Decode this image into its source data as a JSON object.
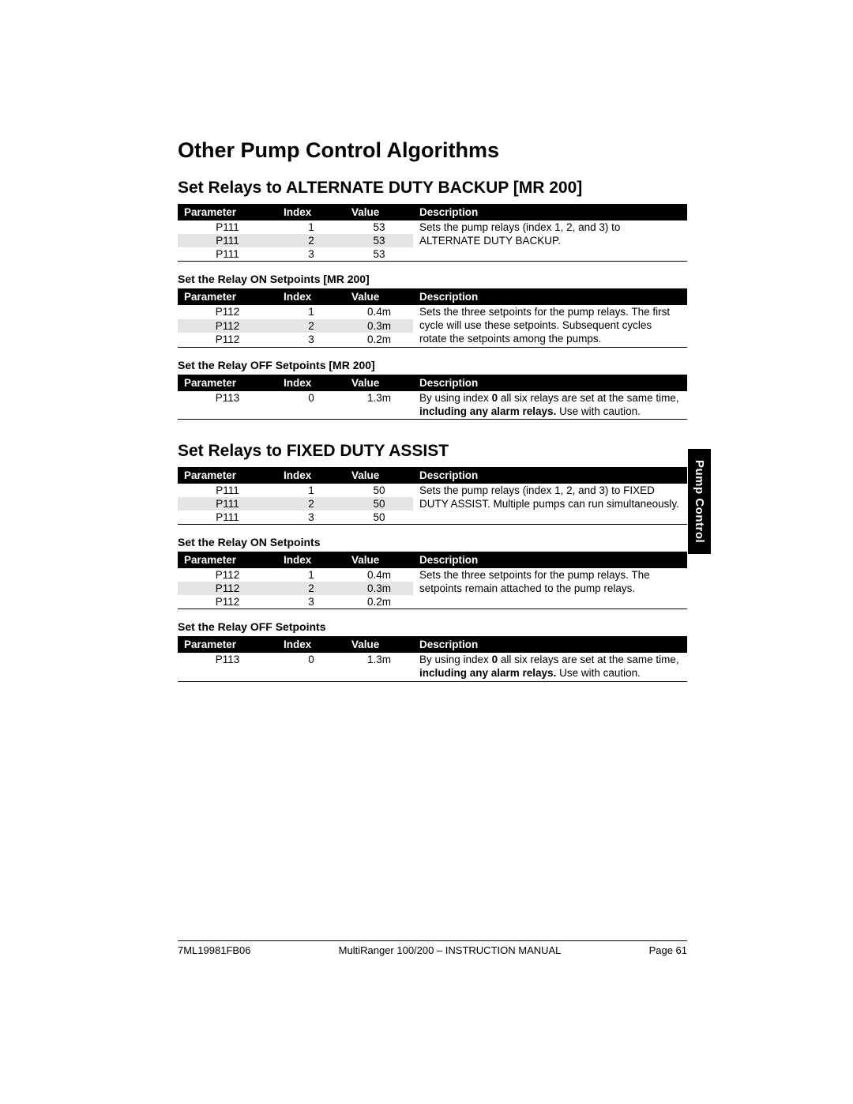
{
  "page": {
    "title": "Other Pump Control Algorithms",
    "side_tab": "Pump Control",
    "footer": {
      "left": "7ML19981FB06",
      "center": "MultiRanger 100/200 – INSTRUCTION MANUAL",
      "right": "Page 61"
    }
  },
  "columns": {
    "c1": "Parameter",
    "c2": "Index",
    "c3": "Value",
    "c4": "Description"
  },
  "sections": [
    {
      "heading": "Set Relays to ALTERNATE DUTY BACKUP [MR 200]",
      "tables": [
        {
          "subtitle": null,
          "rows": [
            {
              "p": "P111",
              "i": "1",
              "v": "53",
              "alt": false
            },
            {
              "p": "P111",
              "i": "2",
              "v": "53",
              "alt": true
            },
            {
              "p": "P111",
              "i": "3",
              "v": "53",
              "alt": false
            }
          ],
          "desc_rowspan": 3,
          "desc": "Sets the pump relays (index 1, 2, and 3) to ALTERNATE DUTY BACKUP."
        },
        {
          "subtitle": "Set the Relay ON Setpoints [MR 200]",
          "rows": [
            {
              "p": "P112",
              "i": "1",
              "v": "0.4m",
              "alt": false
            },
            {
              "p": "P112",
              "i": "2",
              "v": "0.3m",
              "alt": true
            },
            {
              "p": "P112",
              "i": "3",
              "v": "0.2m",
              "alt": false
            }
          ],
          "desc_rowspan": 3,
          "desc": "Sets the three setpoints for the pump relays. The first cycle will use these setpoints. Subsequent cycles rotate the setpoints among the pumps."
        },
        {
          "subtitle": "Set the Relay OFF Setpoints [MR 200]",
          "rows": [
            {
              "p": "P113",
              "i": "0",
              "v": "1.3m",
              "alt": false
            }
          ],
          "desc_rowspan": 1,
          "desc_html": "By using index <b>0</b> all six relays are set at the same time, <b>including any alarm relays.</b> Use with caution."
        }
      ]
    },
    {
      "heading": "Set Relays to FIXED DUTY ASSIST",
      "tables": [
        {
          "subtitle": null,
          "rows": [
            {
              "p": "P111",
              "i": "1",
              "v": "50",
              "alt": false
            },
            {
              "p": "P111",
              "i": "2",
              "v": "50",
              "alt": true
            },
            {
              "p": "P111",
              "i": "3",
              "v": "50",
              "alt": false
            }
          ],
          "desc_rowspan": 3,
          "desc": "Sets the pump relays (index 1, 2, and 3) to FIXED DUTY ASSIST. Multiple pumps can run simultaneously."
        },
        {
          "subtitle": "Set the Relay ON Setpoints",
          "rows": [
            {
              "p": "P112",
              "i": "1",
              "v": "0.4m",
              "alt": false
            },
            {
              "p": "P112",
              "i": "2",
              "v": "0.3m",
              "alt": true
            },
            {
              "p": "P112",
              "i": "3",
              "v": "0.2m",
              "alt": false
            }
          ],
          "desc_rowspan": 3,
          "desc": "Sets the three setpoints for the pump relays. The setpoints remain attached to the pump relays."
        },
        {
          "subtitle": "Set the Relay OFF Setpoints",
          "rows": [
            {
              "p": "P113",
              "i": "0",
              "v": "1.3m",
              "alt": false
            }
          ],
          "desc_rowspan": 1,
          "desc_html": "By using index <b>0</b> all six relays are set at the same time, <b>including any alarm relays.</b> Use with caution."
        }
      ]
    }
  ]
}
